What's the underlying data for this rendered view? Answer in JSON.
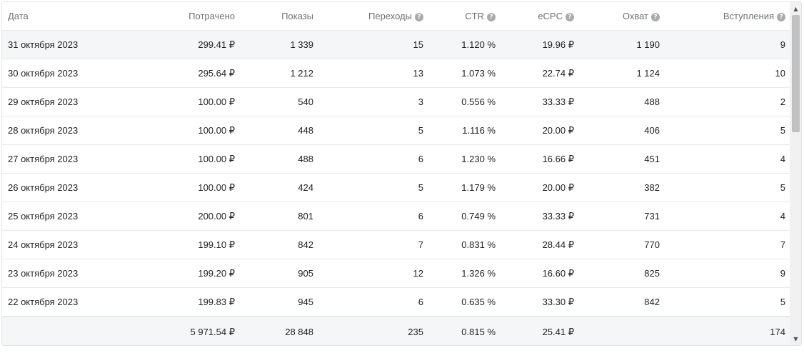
{
  "table": {
    "headers": [
      {
        "label": "Дата",
        "help": false
      },
      {
        "label": "Потрачено",
        "help": false
      },
      {
        "label": "Показы",
        "help": false
      },
      {
        "label": "Переходы",
        "help": true
      },
      {
        "label": "CTR",
        "help": true
      },
      {
        "label": "eCPC",
        "help": true
      },
      {
        "label": "Охват",
        "help": true
      },
      {
        "label": "Вступления",
        "help": true
      }
    ],
    "help_glyph": "?",
    "rows": [
      [
        "31 октября 2023",
        "299.41 ₽",
        "1 339",
        "15",
        "1.120 %",
        "19.96 ₽",
        "1 190",
        "9"
      ],
      [
        "30 октября 2023",
        "295.64 ₽",
        "1 212",
        "13",
        "1.073 %",
        "22.74 ₽",
        "1 124",
        "10"
      ],
      [
        "29 октября 2023",
        "100.00 ₽",
        "540",
        "3",
        "0.556 %",
        "33.33 ₽",
        "488",
        "2"
      ],
      [
        "28 октября 2023",
        "100.00 ₽",
        "448",
        "5",
        "1.116 %",
        "20.00 ₽",
        "406",
        "5"
      ],
      [
        "27 октября 2023",
        "100.00 ₽",
        "488",
        "6",
        "1.230 %",
        "16.66 ₽",
        "451",
        "4"
      ],
      [
        "26 октября 2023",
        "100.00 ₽",
        "424",
        "5",
        "1.179 %",
        "20.00 ₽",
        "382",
        "5"
      ],
      [
        "25 октября 2023",
        "200.00 ₽",
        "801",
        "6",
        "0.749 %",
        "33.33 ₽",
        "731",
        "4"
      ],
      [
        "24 октября 2023",
        "199.10 ₽",
        "842",
        "7",
        "0.831 %",
        "28.44 ₽",
        "770",
        "7"
      ],
      [
        "23 октября 2023",
        "199.20 ₽",
        "905",
        "12",
        "1.326 %",
        "16.60 ₽",
        "825",
        "9"
      ],
      [
        "22 октября 2023",
        "199.83 ₽",
        "945",
        "6",
        "0.635 %",
        "33.30 ₽",
        "842",
        "5"
      ]
    ],
    "totals": [
      "",
      "5 971.54 ₽",
      "28 848",
      "235",
      "0.815 %",
      "25.41 ₽",
      "",
      "174"
    ]
  },
  "scrollbar": {
    "up_glyph": "▲",
    "down_glyph": "▼"
  },
  "colors": {
    "header_text": "#6f7276",
    "row_highlight": "#f5f6f8",
    "border": "#e7e8ea",
    "help_icon": "#a7abb0"
  }
}
